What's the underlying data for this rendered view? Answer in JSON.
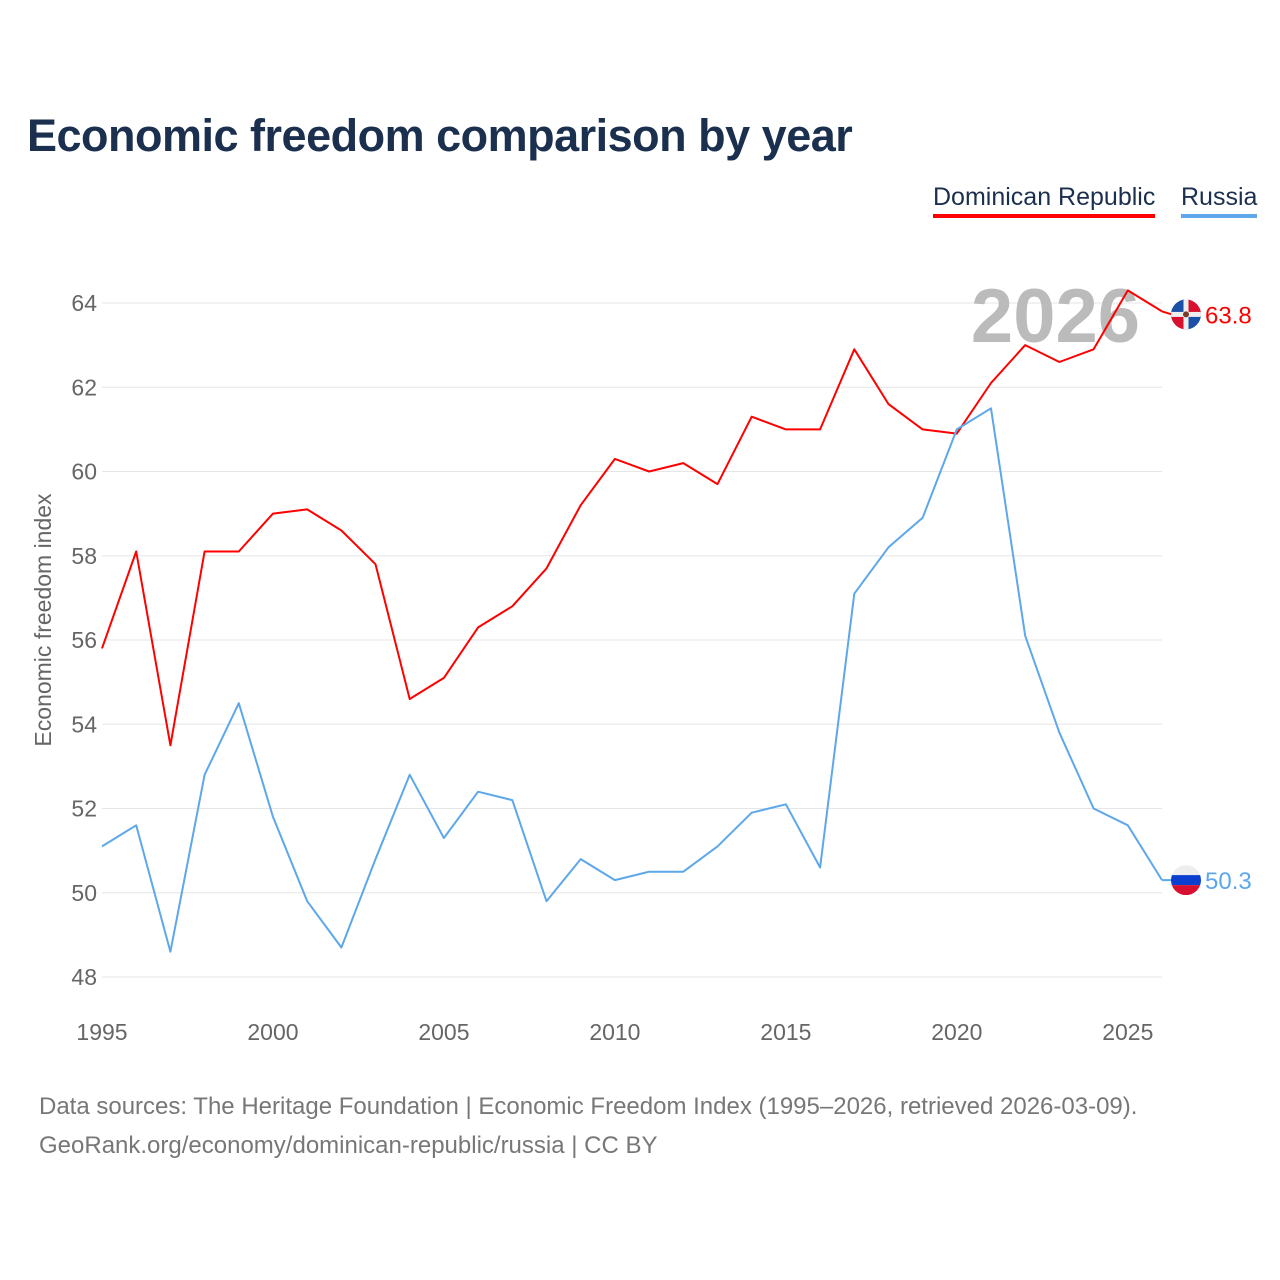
{
  "title": "Economic freedom comparison by year",
  "legend": [
    "Dominican Republic",
    "Russia"
  ],
  "source_line1": "Data sources: The Heritage Foundation | Economic Freedom Index (1995–2026, retrieved 2026-03-09).",
  "source_line2": "GeoRank.org/economy/dominican-republic/russia | CC BY",
  "chart_data": {
    "type": "line",
    "title": "Economic freedom comparison by year",
    "xlabel": "",
    "ylabel": "Economic freedom index",
    "year_label": "2026",
    "x": [
      1995,
      1996,
      1997,
      1998,
      1999,
      2000,
      2001,
      2002,
      2003,
      2004,
      2005,
      2006,
      2007,
      2008,
      2009,
      2010,
      2011,
      2012,
      2013,
      2014,
      2015,
      2016,
      2017,
      2018,
      2019,
      2020,
      2021,
      2022,
      2023,
      2024,
      2025,
      2026
    ],
    "xticks": [
      1995,
      2000,
      2005,
      2010,
      2015,
      2020,
      2025
    ],
    "yticks": [
      48,
      50,
      52,
      54,
      56,
      58,
      60,
      62,
      64
    ],
    "xlim": [
      1995,
      2026
    ],
    "ylim": [
      48,
      64
    ],
    "grid": true,
    "legend_position": "top-right",
    "series": [
      {
        "name": "Dominican Republic",
        "color": "#ff0000",
        "end_label": "63.8",
        "values": [
          55.8,
          58.1,
          53.5,
          58.1,
          58.1,
          59.0,
          59.1,
          58.6,
          57.8,
          54.6,
          55.1,
          56.3,
          56.8,
          57.7,
          59.2,
          60.3,
          60.0,
          60.2,
          59.7,
          61.3,
          61.0,
          61.0,
          62.9,
          61.6,
          61.0,
          60.9,
          62.1,
          63.0,
          62.6,
          62.9,
          64.3,
          63.8
        ]
      },
      {
        "name": "Russia",
        "color": "#5da7ea",
        "end_label": "50.3",
        "values": [
          51.1,
          51.6,
          48.6,
          52.8,
          54.5,
          51.8,
          49.8,
          48.7,
          50.8,
          52.8,
          51.3,
          52.4,
          52.2,
          49.8,
          50.8,
          50.3,
          50.5,
          50.5,
          51.1,
          51.9,
          52.1,
          50.6,
          57.1,
          58.2,
          58.9,
          61.0,
          61.5,
          56.1,
          53.8,
          52.0,
          51.6,
          50.3
        ]
      }
    ]
  }
}
